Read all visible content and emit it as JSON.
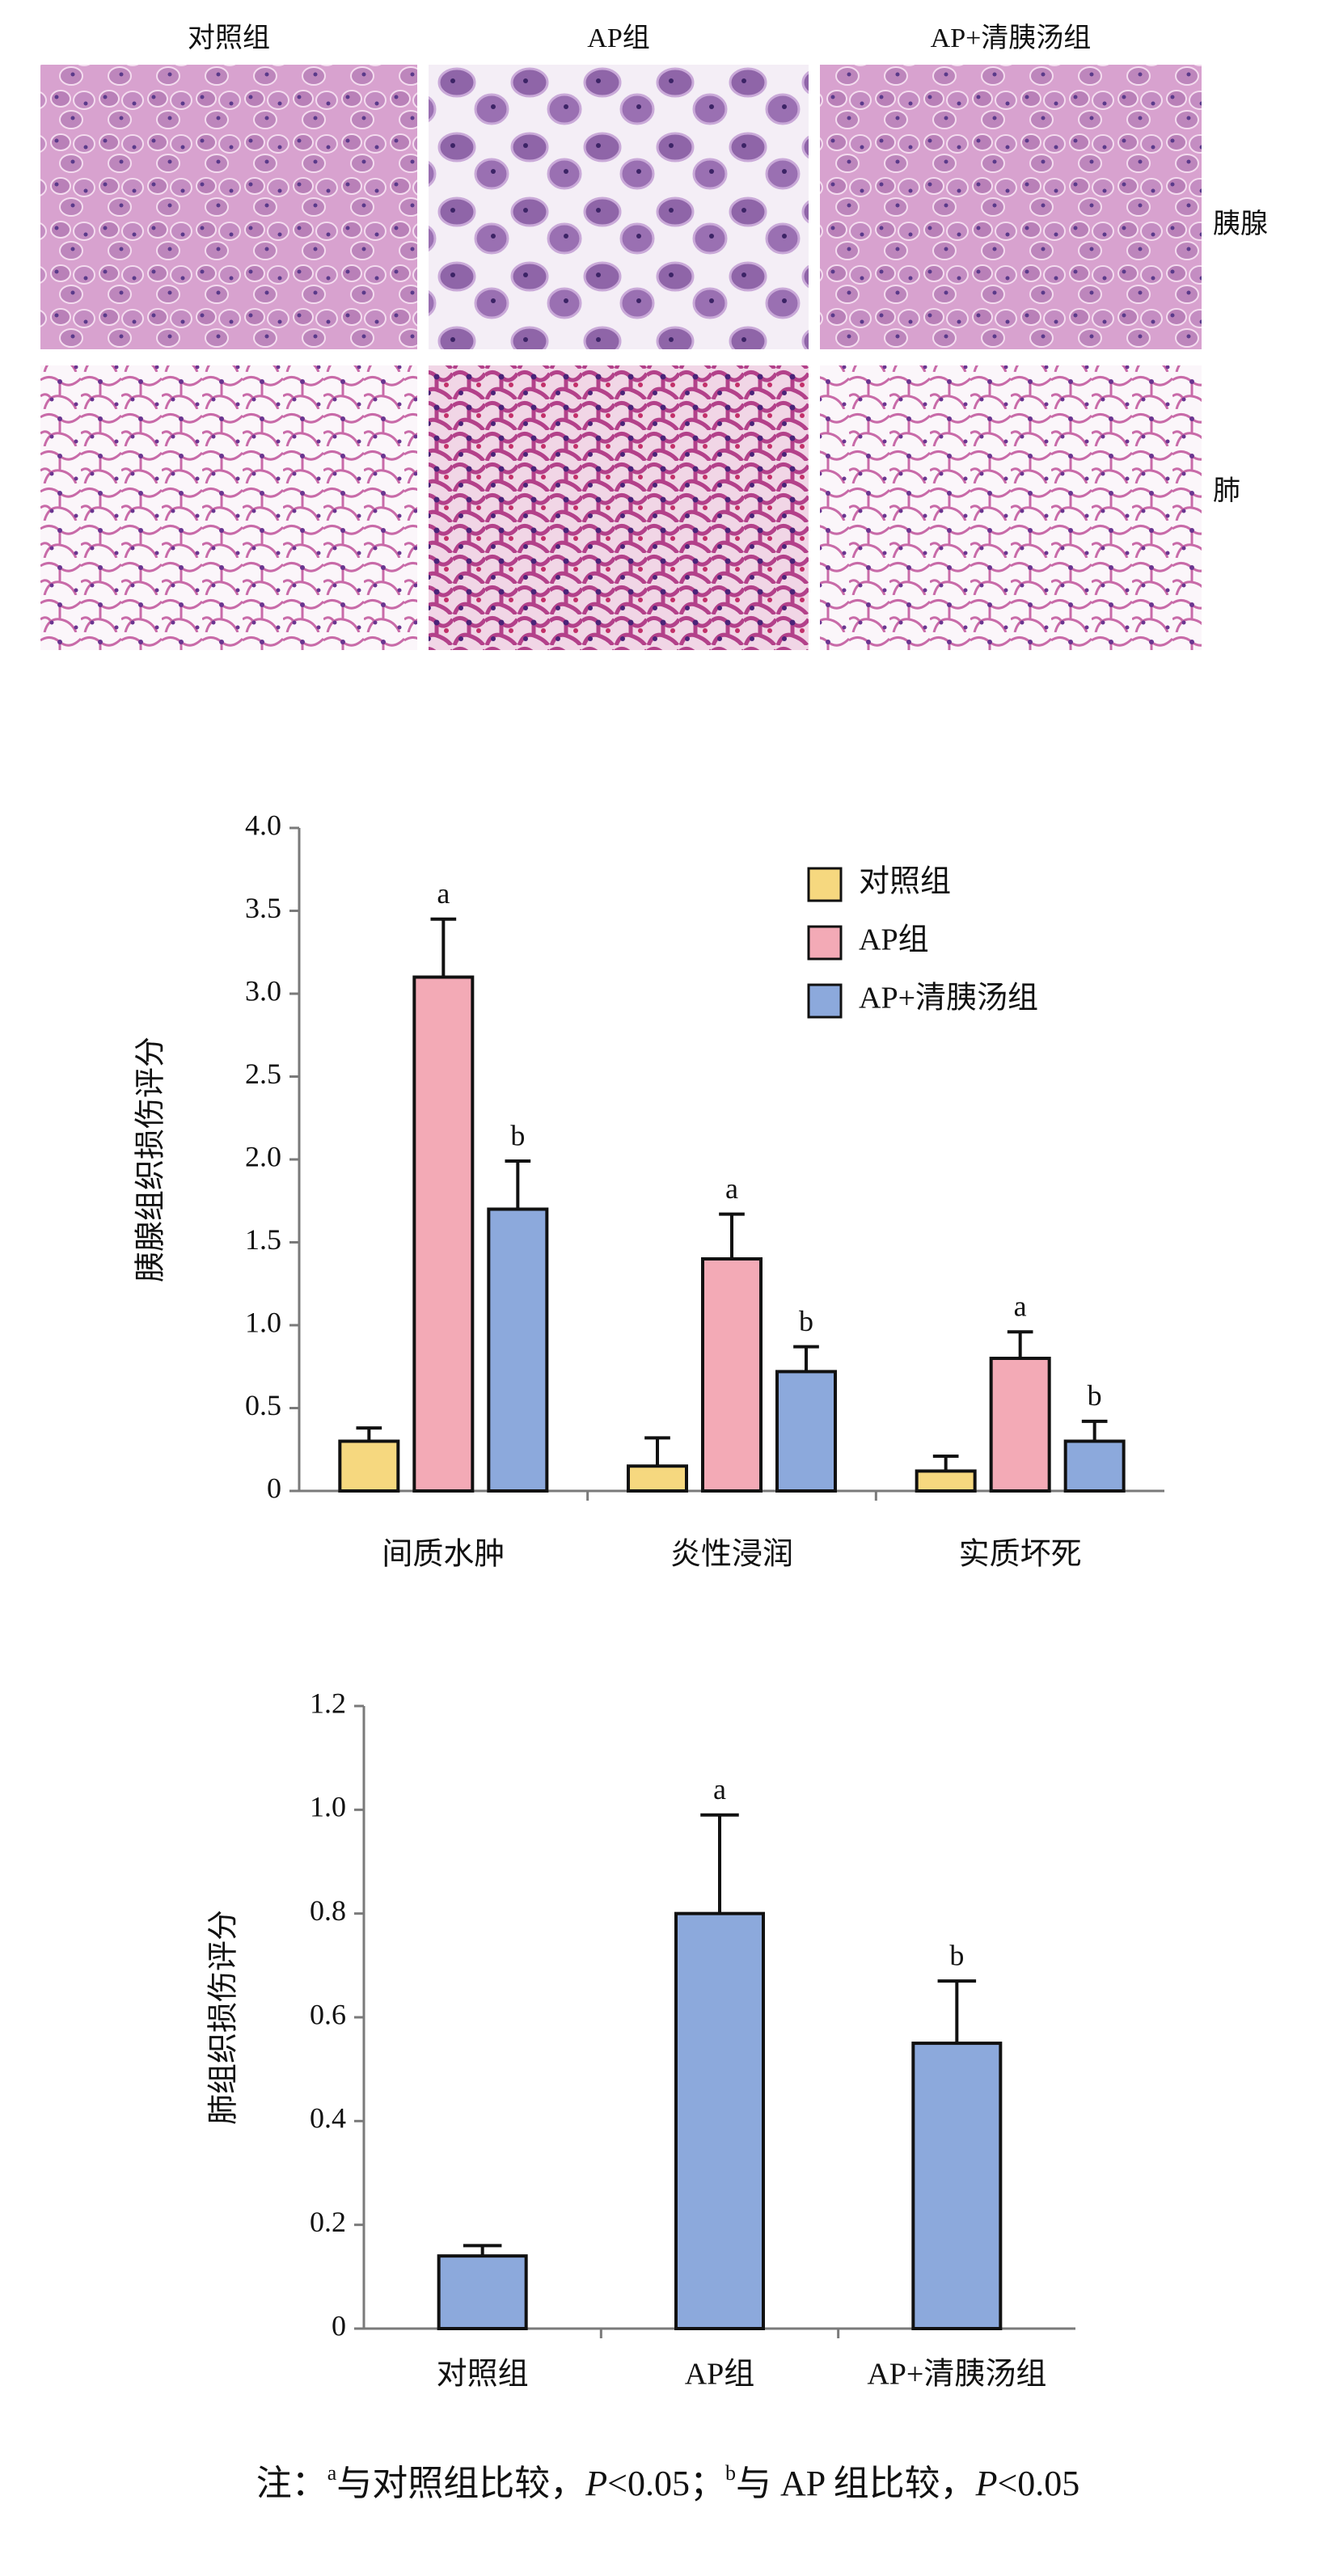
{
  "panels": {
    "columns": [
      "对照组",
      "AP组",
      "AP+清胰汤组"
    ],
    "rows": [
      "胰腺",
      "肺"
    ]
  },
  "chart_data": [
    {
      "type": "bar",
      "ylabel": "胰腺组织损伤评分",
      "categories": [
        "间质水肿",
        "炎性浸润",
        "实质坏死"
      ],
      "series": [
        {
          "name": "对照组",
          "color": "#f6d87f",
          "values": [
            0.3,
            0.15,
            0.12
          ],
          "errors": [
            0.08,
            0.17,
            0.09
          ]
        },
        {
          "name": "AP组",
          "color": "#f3aab6",
          "values": [
            3.1,
            1.4,
            0.8
          ],
          "errors": [
            0.35,
            0.27,
            0.16
          ],
          "annotations": [
            "a",
            "a",
            "a"
          ]
        },
        {
          "name": "AP+清胰汤组",
          "color": "#8ca9dc",
          "values": [
            1.7,
            0.72,
            0.3
          ],
          "errors": [
            0.29,
            0.15,
            0.12
          ],
          "annotations": [
            "b",
            "b",
            "b"
          ]
        }
      ],
      "ylim": [
        0,
        4
      ],
      "yticks": [
        0,
        0.5,
        {
          "value": 1,
          "label": "1.0"
        },
        1.5,
        {
          "value": 2,
          "label": "2.0"
        },
        2.5,
        {
          "value": 3,
          "label": "3.0"
        },
        3.5,
        {
          "value": 4,
          "label": "4.0"
        }
      ],
      "legend": "upper right"
    },
    {
      "type": "bar",
      "ylabel": "肺组织损伤评分",
      "categories": [
        "对照组",
        "AP组",
        "AP+清胰汤组"
      ],
      "color": "#8ca9dc",
      "values": [
        0.14,
        0.8,
        0.55
      ],
      "errors": [
        0.02,
        0.19,
        0.12
      ],
      "annotations": [
        null,
        "a",
        "b"
      ],
      "ylim": [
        0,
        1.2
      ],
      "yticks": [
        0,
        0.2,
        0.4,
        0.6,
        0.8,
        {
          "value": 1,
          "label": "1.0"
        },
        1.2
      ]
    }
  ],
  "note": [
    "注：",
    "a",
    "与对照组比较，",
    "P",
    "<0.05；",
    "b",
    "与 AP 组比较，",
    "P",
    "<0.05"
  ]
}
